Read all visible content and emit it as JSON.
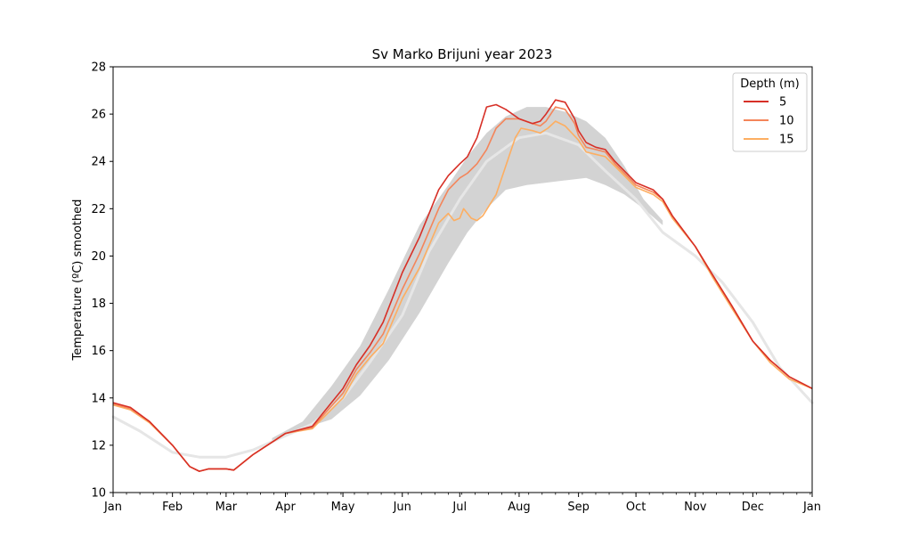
{
  "chart_data": {
    "type": "line",
    "title": "Sv Marko Brijuni year 2023",
    "xlabel": "",
    "ylabel": "Temperature (ºC) smoothed",
    "ylim": [
      10,
      28
    ],
    "yticks": [
      10,
      12,
      14,
      16,
      18,
      20,
      22,
      24,
      26,
      28
    ],
    "xlim": [
      "2023-01-01",
      "2024-01-01"
    ],
    "xticks": [
      {
        "date": "2023-01-01",
        "label": "Jan"
      },
      {
        "date": "2023-02-01",
        "label": "Feb"
      },
      {
        "date": "2023-03-01",
        "label": "Mar"
      },
      {
        "date": "2023-04-01",
        "label": "Apr"
      },
      {
        "date": "2023-05-01",
        "label": "May"
      },
      {
        "date": "2023-06-01",
        "label": "Jun"
      },
      {
        "date": "2023-07-01",
        "label": "Jul"
      },
      {
        "date": "2023-08-01",
        "label": "Aug"
      },
      {
        "date": "2023-09-01",
        "label": "Sep"
      },
      {
        "date": "2023-10-01",
        "label": "Oct"
      },
      {
        "date": "2023-11-01",
        "label": "Nov"
      },
      {
        "date": "2023-12-01",
        "label": "Dec"
      },
      {
        "date": "2024-01-01",
        "label": "Jan"
      }
    ],
    "grid": false,
    "legend": {
      "title": "Depth (m)",
      "placement": "top-right"
    },
    "band": {
      "color": "#d3d3d3",
      "x": [
        "2023-03-25",
        "2023-04-10",
        "2023-04-25",
        "2023-05-10",
        "2023-05-25",
        "2023-06-10",
        "2023-06-25",
        "2023-07-05",
        "2023-07-15",
        "2023-07-25",
        "2023-08-05",
        "2023-08-15",
        "2023-08-25",
        "2023-09-05",
        "2023-09-15",
        "2023-09-25",
        "2023-10-05",
        "2023-10-15"
      ],
      "upper": [
        12.3,
        13.0,
        14.5,
        16.2,
        18.6,
        21.3,
        23.0,
        24.2,
        25.2,
        25.9,
        26.3,
        26.3,
        26.1,
        25.7,
        25.0,
        23.8,
        22.4,
        21.5
      ],
      "lower": [
        12.2,
        12.7,
        13.1,
        14.1,
        15.6,
        17.6,
        19.7,
        21.0,
        22.0,
        22.8,
        23.0,
        23.1,
        23.2,
        23.3,
        23.0,
        22.6,
        22.0,
        21.3
      ]
    },
    "climatology": {
      "color": "#e6e6e6",
      "x": [
        "2023-01-01",
        "2023-01-15",
        "2023-02-01",
        "2023-02-15",
        "2023-03-01",
        "2023-03-15",
        "2023-04-01",
        "2023-04-15",
        "2023-05-01",
        "2023-05-15",
        "2023-06-01",
        "2023-06-15",
        "2023-07-01",
        "2023-07-15",
        "2023-08-01",
        "2023-08-15",
        "2023-09-01",
        "2023-09-15",
        "2023-10-01",
        "2023-10-15",
        "2023-11-01",
        "2023-11-15",
        "2023-12-01",
        "2023-12-15",
        "2024-01-01"
      ],
      "y": [
        13.2,
        12.6,
        11.7,
        11.5,
        11.5,
        11.8,
        12.4,
        12.9,
        14.0,
        15.5,
        17.5,
        20.2,
        22.4,
        24.0,
        25.0,
        25.2,
        24.7,
        23.6,
        22.4,
        21.0,
        20.0,
        18.9,
        17.2,
        15.3,
        13.8
      ]
    },
    "series": [
      {
        "name": "5",
        "color": "#d73027",
        "x": [
          "2023-01-01",
          "2023-01-10",
          "2023-01-20",
          "2023-02-01",
          "2023-02-10",
          "2023-02-15",
          "2023-02-20",
          "2023-03-01",
          "2023-03-05",
          "2023-03-15",
          "2023-04-01",
          "2023-04-15",
          "2023-05-01",
          "2023-05-08",
          "2023-05-15",
          "2023-05-22",
          "2023-06-01",
          "2023-06-10",
          "2023-06-20",
          "2023-06-25",
          "2023-07-01",
          "2023-07-05",
          "2023-07-10",
          "2023-07-15",
          "2023-07-20",
          "2023-07-25",
          "2023-08-01",
          "2023-08-08",
          "2023-08-12",
          "2023-08-15",
          "2023-08-20",
          "2023-08-25",
          "2023-08-30",
          "2023-09-01",
          "2023-09-05",
          "2023-09-10",
          "2023-09-15",
          "2023-09-20",
          "2023-10-01",
          "2023-10-10",
          "2023-10-15",
          "2023-10-20",
          "2023-11-01",
          "2023-11-10",
          "2023-11-20",
          "2023-12-01",
          "2023-12-10",
          "2023-12-20",
          "2024-01-01"
        ],
        "y": [
          13.8,
          13.6,
          13.0,
          12.0,
          11.1,
          10.9,
          11.0,
          11.0,
          10.95,
          11.6,
          12.5,
          12.8,
          14.4,
          15.4,
          16.2,
          17.2,
          19.3,
          20.8,
          22.8,
          23.4,
          23.9,
          24.2,
          25.0,
          26.3,
          26.4,
          26.2,
          25.8,
          25.6,
          25.7,
          26.0,
          26.6,
          26.5,
          25.8,
          25.3,
          24.8,
          24.6,
          24.5,
          24.0,
          23.1,
          22.8,
          22.4,
          21.7,
          20.4,
          19.2,
          17.9,
          16.4,
          15.6,
          14.9,
          14.4
        ]
      },
      {
        "name": "10",
        "color": "#f4855a",
        "x": [
          "2023-01-01",
          "2023-01-10",
          "2023-01-20",
          "2023-02-01",
          "2023-02-10",
          "2023-02-15",
          "2023-02-20",
          "2023-03-01",
          "2023-03-05",
          "2023-03-15",
          "2023-04-01",
          "2023-04-15",
          "2023-05-01",
          "2023-05-08",
          "2023-05-15",
          "2023-05-22",
          "2023-06-01",
          "2023-06-10",
          "2023-06-20",
          "2023-06-25",
          "2023-07-01",
          "2023-07-05",
          "2023-07-10",
          "2023-07-15",
          "2023-07-20",
          "2023-07-25",
          "2023-08-01",
          "2023-08-08",
          "2023-08-12",
          "2023-08-15",
          "2023-08-20",
          "2023-08-25",
          "2023-08-30",
          "2023-09-01",
          "2023-09-05",
          "2023-09-10",
          "2023-09-15",
          "2023-09-20",
          "2023-10-01",
          "2023-10-10",
          "2023-10-15",
          "2023-10-20",
          "2023-11-01",
          "2023-11-10",
          "2023-11-20",
          "2023-12-01",
          "2023-12-10",
          "2023-12-20",
          "2024-01-01"
        ],
        "y": [
          13.75,
          13.55,
          13.0,
          12.0,
          11.1,
          10.9,
          11.0,
          11.0,
          10.95,
          11.6,
          12.5,
          12.75,
          14.2,
          15.2,
          15.9,
          16.7,
          18.6,
          20.1,
          22.0,
          22.8,
          23.3,
          23.5,
          23.9,
          24.5,
          25.4,
          25.8,
          25.8,
          25.6,
          25.5,
          25.7,
          26.3,
          26.2,
          25.6,
          25.1,
          24.6,
          24.5,
          24.4,
          23.9,
          23.0,
          22.7,
          22.4,
          21.7,
          20.4,
          19.2,
          17.9,
          16.4,
          15.6,
          14.9,
          14.4
        ]
      },
      {
        "name": "15",
        "color": "#fdae61",
        "x": [
          "2023-01-01",
          "2023-01-10",
          "2023-01-20",
          "2023-02-01",
          "2023-02-10",
          "2023-02-15",
          "2023-02-20",
          "2023-03-01",
          "2023-03-05",
          "2023-03-15",
          "2023-04-01",
          "2023-04-15",
          "2023-05-01",
          "2023-05-08",
          "2023-05-15",
          "2023-05-22",
          "2023-06-01",
          "2023-06-10",
          "2023-06-20",
          "2023-06-25",
          "2023-06-28",
          "2023-07-01",
          "2023-07-03",
          "2023-07-07",
          "2023-07-10",
          "2023-07-13",
          "2023-07-20",
          "2023-07-25",
          "2023-07-30",
          "2023-08-02",
          "2023-08-08",
          "2023-08-12",
          "2023-08-16",
          "2023-08-20",
          "2023-08-25",
          "2023-09-01",
          "2023-09-05",
          "2023-09-10",
          "2023-09-15",
          "2023-09-20",
          "2023-10-01",
          "2023-10-10",
          "2023-10-15",
          "2023-10-20",
          "2023-11-01",
          "2023-11-10",
          "2023-11-20",
          "2023-12-01",
          "2023-12-10",
          "2023-12-20",
          "2024-01-01"
        ],
        "y": [
          13.7,
          13.5,
          12.95,
          12.0,
          11.1,
          10.9,
          11.0,
          11.0,
          10.95,
          11.6,
          12.5,
          12.7,
          14.0,
          15.0,
          15.7,
          16.3,
          18.2,
          19.5,
          21.4,
          21.8,
          21.5,
          21.6,
          22.0,
          21.6,
          21.5,
          21.7,
          22.6,
          23.8,
          25.0,
          25.4,
          25.3,
          25.2,
          25.4,
          25.7,
          25.5,
          24.9,
          24.4,
          24.3,
          24.2,
          23.8,
          22.9,
          22.6,
          22.3,
          21.6,
          20.4,
          19.1,
          17.8,
          16.4,
          15.5,
          14.8,
          14.4
        ]
      }
    ]
  }
}
